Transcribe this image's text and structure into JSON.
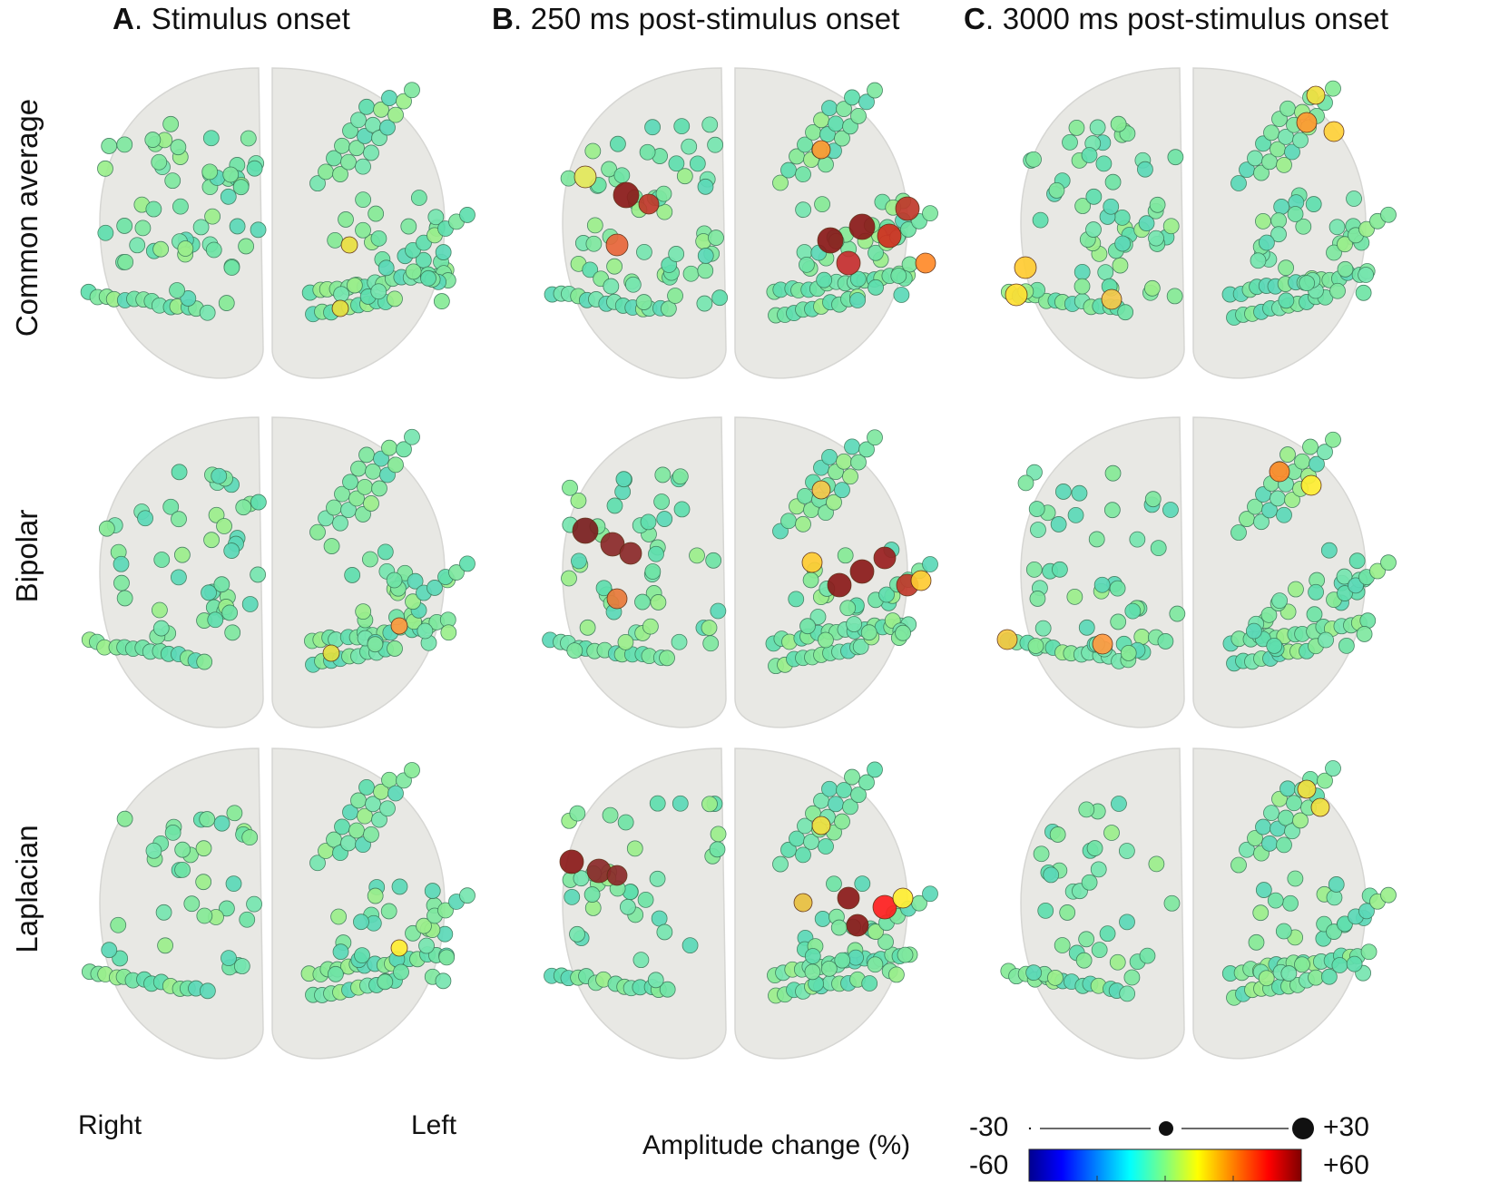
{
  "titles": {
    "a_letter": "A",
    "a_text": ". Stimulus onset",
    "b_letter": "B",
    "b_text": ". 250 ms post-stimulus onset",
    "c_letter": "C",
    "c_text": ". 3000 ms post-stimulus onset"
  },
  "rows": [
    "Common average",
    "Bipolar",
    "Laplacian"
  ],
  "sides": {
    "right": "Right",
    "left": "Left"
  },
  "legend": {
    "label": "Amplitude change (%)",
    "size_min": "-30",
    "size_max": "+30",
    "color_min": "-60",
    "color_max": "+60"
  },
  "colors": {
    "electrode_base": "#6ee6a0",
    "colormap": [
      "#00008f",
      "#0000ff",
      "#00ffff",
      "#7fff7f",
      "#ffff00",
      "#ff7f00",
      "#ff0000",
      "#7f0000"
    ]
  },
  "panels": {
    "A1": {
      "hotspots": []
    },
    "B1": {
      "hotspots": []
    },
    "C1": {
      "hotspots": []
    }
  }
}
